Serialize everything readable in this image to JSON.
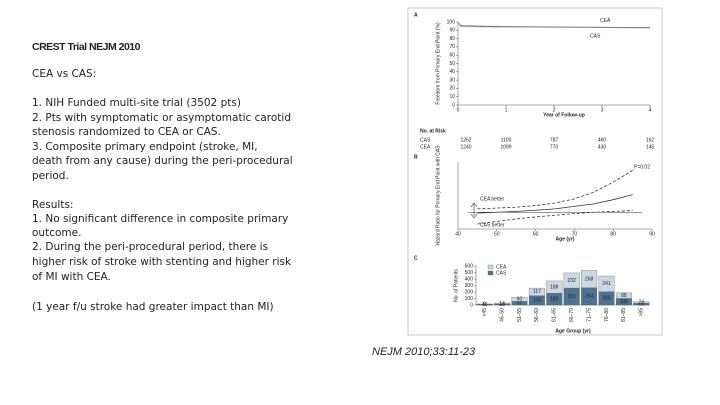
{
  "slide": {
    "title": "CREST Trial NEJM 2010",
    "lines": [
      "CEA vs CAS:",
      "1. NIH Funded multi-site trial (3502 pts)",
      "2. Pts with symptomatic or asymptomatic carotid",
      "stenosis randomized to CEA or CAS.",
      "3. Composite primary endpoint (stroke, MI,",
      "death from any cause) during the peri-procedural",
      "period.",
      "Results:",
      "1. No significant difference in composite primary",
      "outcome.",
      "2. During the peri-procedural period, there is",
      "higher risk of stroke with stenting and higher risk",
      "of MI with CEA.",
      "(1 year f/u stroke had greater impact than MI)"
    ],
    "citation": "NEJM 2010;33:11-23"
  },
  "chart_data": [
    {
      "type": "line",
      "panel": "A",
      "ylabel": "Freedom from Primary End Point (%)",
      "xlabel": "Year of Follow-up",
      "x": [
        0,
        0.05,
        0.1,
        0.5,
        1,
        2,
        3,
        4
      ],
      "series": [
        {
          "name": "CEA",
          "color": "#555555",
          "values": [
            100,
            96,
            95.5,
            95,
            94.6,
            94,
            93.6,
            93.3
          ]
        },
        {
          "name": "CAS",
          "color": "#9a9a9a",
          "values": [
            100,
            95,
            94.5,
            94.2,
            94,
            93.6,
            93.2,
            92.8
          ]
        }
      ],
      "xlim": [
        0,
        4
      ],
      "ylim": [
        0,
        100
      ],
      "xticks": [
        0,
        1,
        2,
        3,
        4
      ],
      "yticks": [
        0,
        10,
        20,
        30,
        40,
        50,
        60,
        70,
        80,
        90,
        100
      ],
      "at_risk": {
        "title": "No. at Risk",
        "rows": [
          {
            "name": "CAS",
            "values": [
              1262,
              1100,
              787,
              460,
              162
            ]
          },
          {
            "name": "CEA",
            "values": [
              1240,
              1099,
              770,
              430,
              145
            ]
          }
        ]
      }
    },
    {
      "type": "line",
      "panel": "B",
      "ylabel": "Hazard Ratio for Primary End Point with CAS",
      "xlabel": "Age (yr)",
      "x": [
        45,
        50,
        55,
        60,
        65,
        70,
        75,
        80,
        85
      ],
      "series": [
        {
          "color": "#333333",
          "dash": false,
          "values": [
            0.95,
            1.0,
            1.05,
            1.12,
            1.2,
            1.35,
            1.5,
            1.75,
            2.05
          ]
        },
        {
          "color": "#333333",
          "dash": true,
          "values": [
            1.2,
            1.25,
            1.3,
            1.4,
            1.55,
            1.8,
            2.2,
            2.8,
            3.5
          ]
        },
        {
          "color": "#333333",
          "dash": true,
          "values": [
            0.3,
            0.45,
            0.6,
            0.72,
            0.82,
            0.92,
            1.0,
            1.05,
            1.1
          ]
        }
      ],
      "reference": 1,
      "annotations": [
        "P=0.02",
        "CEA better",
        "CAS better"
      ],
      "xlim": [
        40,
        90
      ],
      "ylim": [
        0,
        4
      ],
      "xticks": [
        40,
        50,
        60,
        70,
        80,
        90
      ]
    },
    {
      "type": "bar",
      "panel": "C",
      "stacked": true,
      "ylabel": "No. of Patients",
      "xlabel": "Age Group (yr)",
      "categories": [
        "<45",
        "46–50",
        "51–55",
        "56–60",
        "61–65",
        "66–70",
        "71–75",
        "76–80",
        "81–85",
        ">85"
      ],
      "series": [
        {
          "name": "CAS",
          "color": "#4d7391",
          "values": [
            10,
            16,
            57,
            143,
            182,
            261,
            264,
            205,
            100,
            28
          ]
        },
        {
          "name": "CEA",
          "color": "#cbd8e4",
          "values": [
            6,
            14,
            60,
            117,
            188,
            232,
            268,
            241,
            88,
            24
          ]
        }
      ],
      "ylim": [
        0,
        600
      ],
      "yticks": [
        0,
        100,
        200,
        300,
        400,
        500,
        600
      ]
    }
  ]
}
